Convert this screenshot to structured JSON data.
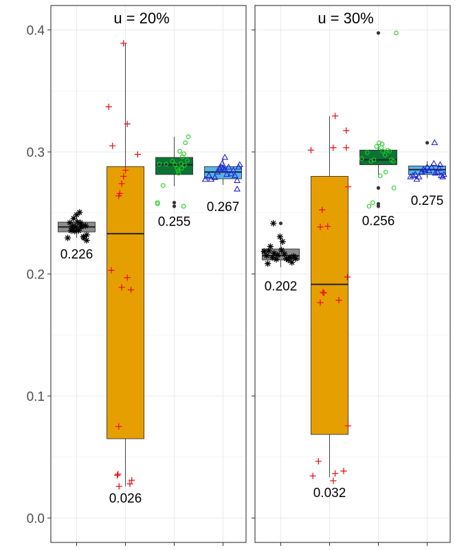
{
  "chart_data": {
    "type": "boxplot",
    "y_axis": {
      "range": [
        -0.02,
        0.42
      ],
      "ticks": [
        0.0,
        0.1,
        0.2,
        0.3,
        0.4
      ],
      "tick_labels": [
        "0.0",
        "0.1",
        "0.2",
        "0.3",
        "0.4"
      ],
      "minor_ticks": [
        0.05,
        0.15,
        0.25,
        0.35
      ],
      "grid": true
    },
    "x_axis": {
      "tick_labels": [
        "",
        "",
        "",
        ""
      ]
    },
    "colors": {
      "series": [
        "#8c8c8c",
        "#e69f00",
        "#0b7335",
        "#56b4e9"
      ],
      "points": [
        "#000000",
        "#e8141e",
        "#22cc22",
        "#1f1fd6"
      ],
      "grid": "#ebebeb",
      "panel_border": "#333333",
      "outlier": "#333333"
    },
    "point_markers": [
      "asterisk",
      "plus",
      "circle",
      "triangle"
    ],
    "panels": [
      {
        "title": "u = 20%",
        "groups": [
          {
            "stats": {
              "q1": 0.2345,
              "median": 0.2385,
              "q3": 0.2425,
              "whisker_low": 0.2295,
              "whisker_high": 0.2485
            },
            "label": "0.226",
            "label_y": 0.2165,
            "outliers": [],
            "points": [
              [
                -0.24,
                0.2295
              ],
              [
                -0.18,
                0.242
              ],
              [
                -0.12,
                0.2375
              ],
              [
                -0.08,
                0.2455
              ],
              [
                -0.05,
                0.235
              ],
              [
                -0.02,
                0.2385
              ],
              [
                0.02,
                0.2425
              ],
              [
                0.05,
                0.2355
              ],
              [
                0.08,
                0.2505
              ],
              [
                0.12,
                0.2385
              ],
              [
                0.15,
                0.2395
              ],
              [
                0.2,
                0.2295
              ],
              [
                0.24,
                0.2395
              ],
              [
                0.27,
                0.2275
              ],
              [
                0.27,
                0.232
              ],
              [
                0.0,
                0.2485
              ],
              [
                -0.15,
                0.2355
              ],
              [
                0.1,
                0.242
              ],
              [
                0.18,
                0.2305
              ],
              [
                -0.1,
                0.2395
              ]
            ]
          },
          {
            "stats": {
              "q1": 0.065,
              "median": 0.233,
              "q3": 0.288,
              "whisker_low": 0.026,
              "whisker_high": 0.389
            },
            "label": "0.026",
            "label_y": 0.0165,
            "outliers": [],
            "points": [
              [
                -0.05,
                0.389
              ],
              [
                -0.45,
                0.337
              ],
              [
                -0.35,
                0.305
              ],
              [
                0.05,
                0.323
              ],
              [
                0.33,
                0.298
              ],
              [
                -0.18,
                0.264
              ],
              [
                -0.1,
                0.274
              ],
              [
                -0.05,
                0.28
              ],
              [
                0.0,
                0.285
              ],
              [
                -0.15,
                0.266
              ],
              [
                -0.38,
                0.203
              ],
              [
                0.05,
                0.197
              ],
              [
                -0.1,
                0.189
              ],
              [
                0.15,
                0.187
              ],
              [
                -0.18,
                0.075
              ],
              [
                -0.2,
                0.036
              ],
              [
                -0.22,
                0.035
              ],
              [
                -0.17,
                0.026
              ],
              [
                0.12,
                0.028
              ],
              [
                0.17,
                0.031
              ]
            ]
          },
          {
            "stats": {
              "q1": 0.2815,
              "median": 0.2895,
              "q3": 0.2955,
              "whisker_low": 0.272,
              "whisker_high": 0.3125
            },
            "label": "0.255",
            "label_y": 0.2435,
            "outliers": [
              0.2585,
              0.2555
            ],
            "points": [
              [
                -0.4,
                0.29
              ],
              [
                -0.22,
                0.29
              ],
              [
                -0.05,
                0.2925
              ],
              [
                0.02,
                0.2895
              ],
              [
                0.08,
                0.2865
              ],
              [
                0.12,
                0.2825
              ],
              [
                0.18,
                0.2905
              ],
              [
                0.22,
                0.296
              ],
              [
                0.26,
                0.2985
              ],
              [
                0.3,
                0.3075
              ],
              [
                0.38,
                0.3125
              ],
              [
                0.28,
                0.289
              ],
              [
                0.15,
                0.3005
              ],
              [
                -0.3,
                0.2725
              ],
              [
                -0.45,
                0.2585
              ],
              [
                -0.45,
                0.2575
              ],
              [
                0.25,
                0.2555
              ],
              [
                0.35,
                0.293
              ],
              [
                0.1,
                0.2845
              ],
              [
                0.2,
                0.2865
              ]
            ]
          },
          {
            "stats": {
              "q1": 0.278,
              "median": 0.2835,
              "q3": 0.288,
              "whisker_low": 0.273,
              "whisker_high": 0.2945
            },
            "label": "0.267",
            "label_y": 0.2555,
            "outliers": [],
            "points": [
              [
                -0.48,
                0.2775
              ],
              [
                -0.38,
                0.2805
              ],
              [
                -0.32,
                0.2775
              ],
              [
                -0.22,
                0.279
              ],
              [
                -0.15,
                0.2835
              ],
              [
                -0.1,
                0.2865
              ],
              [
                -0.05,
                0.2875
              ],
              [
                0.0,
                0.2865
              ],
              [
                0.05,
                0.2855
              ],
              [
                -0.02,
                0.2905
              ],
              [
                0.05,
                0.2955
              ],
              [
                0.15,
                0.2875
              ],
              [
                0.22,
                0.282
              ],
              [
                0.28,
                0.285
              ],
              [
                0.32,
                0.2805
              ],
              [
                0.38,
                0.2765
              ],
              [
                0.42,
                0.2875
              ],
              [
                0.45,
                0.2895
              ],
              [
                0.38,
                0.2695
              ],
              [
                0.1,
                0.2815
              ]
            ]
          }
        ]
      },
      {
        "title": "u = 30%",
        "groups": [
          {
            "stats": {
              "q1": 0.2115,
              "median": 0.215,
              "q3": 0.2205,
              "whisker_low": 0.2055,
              "whisker_high": 0.2315
            },
            "label": "0.202",
            "label_y": 0.1905,
            "outliers": [
              0.2415
            ],
            "points": [
              [
                -0.45,
                0.2185
              ],
              [
                -0.38,
                0.215
              ],
              [
                -0.32,
                0.219
              ],
              [
                -0.28,
                0.2225
              ],
              [
                -0.22,
                0.2135
              ],
              [
                -0.18,
                0.217
              ],
              [
                -0.12,
                0.212
              ],
              [
                -0.08,
                0.2155
              ],
              [
                -0.02,
                0.2305
              ],
              [
                0.05,
                0.2265
              ],
              [
                0.1,
                0.2165
              ],
              [
                0.15,
                0.2125
              ],
              [
                0.2,
                0.2115
              ],
              [
                0.25,
                0.2135
              ],
              [
                0.3,
                0.2095
              ],
              [
                0.35,
                0.2145
              ],
              [
                -0.35,
                0.2085
              ],
              [
                0.02,
                0.2195
              ],
              [
                -0.2,
                0.2415
              ],
              [
                0.4,
                0.2125
              ]
            ]
          },
          {
            "stats": {
              "q1": 0.0685,
              "median": 0.1915,
              "q3": 0.28,
              "whisker_low": 0.0335,
              "whisker_high": 0.3295
            },
            "label": "0.032",
            "label_y": 0.021,
            "outliers": [],
            "points": [
              [
                -0.5,
                0.3015
              ],
              [
                0.15,
                0.3295
              ],
              [
                0.1,
                0.3035
              ],
              [
                0.45,
                0.3175
              ],
              [
                0.45,
                0.3035
              ],
              [
                0.5,
                0.2715
              ],
              [
                -0.2,
                0.2525
              ],
              [
                -0.05,
                0.239
              ],
              [
                -0.25,
                0.2385
              ],
              [
                0.48,
                0.1975
              ],
              [
                -0.18,
                0.185
              ],
              [
                -0.15,
                0.1845
              ],
              [
                0.25,
                0.1785
              ],
              [
                -0.25,
                0.1765
              ],
              [
                0.5,
                0.0755
              ],
              [
                -0.3,
                0.0465
              ],
              [
                -0.45,
                0.0345
              ],
              [
                0.15,
                0.0365
              ],
              [
                0.1,
                0.0305
              ],
              [
                0.38,
                0.0385
              ]
            ]
          },
          {
            "stats": {
              "q1": 0.2895,
              "median": 0.2935,
              "q3": 0.3015,
              "whisker_low": 0.2795,
              "whisker_high": 0.3065
            },
            "label": "0.256",
            "label_y": 0.244,
            "outliers": [
              0.3975,
              0.2705,
              0.2575,
              0.2555
            ],
            "points": [
              [
                0.48,
                0.3975
              ],
              [
                -0.45,
                0.2945
              ],
              [
                -0.3,
                0.2995
              ],
              [
                -0.2,
                0.2925
              ],
              [
                -0.12,
                0.2935
              ],
              [
                -0.05,
                0.3045
              ],
              [
                0.02,
                0.3075
              ],
              [
                0.08,
                0.3035
              ],
              [
                0.12,
                0.3005
              ],
              [
                0.18,
                0.2975
              ],
              [
                0.25,
                0.3015
              ],
              [
                0.3,
                0.3005
              ],
              [
                0.35,
                0.2935
              ],
              [
                0.4,
                0.2925
              ],
              [
                0.42,
                0.2705
              ],
              [
                -0.25,
                0.2555
              ],
              [
                -0.15,
                0.2585
              ],
              [
                0.05,
                0.2805
              ],
              [
                0.1,
                0.3065
              ],
              [
                0.2,
                0.2835
              ]
            ]
          },
          {
            "stats": {
              "q1": 0.2815,
              "median": 0.2855,
              "q3": 0.2885,
              "whisker_low": 0.2785,
              "whisker_high": 0.2925
            },
            "label": "0.275",
            "label_y": 0.2605,
            "outliers": [
              0.3075
            ],
            "points": [
              [
                0.2,
                0.3075
              ],
              [
                -0.45,
                0.2795
              ],
              [
                -0.38,
                0.2805
              ],
              [
                -0.32,
                0.2815
              ],
              [
                -0.28,
                0.2775
              ],
              [
                -0.22,
                0.2795
              ],
              [
                -0.15,
                0.2835
              ],
              [
                -0.1,
                0.2855
              ],
              [
                -0.05,
                0.2845
              ],
              [
                0.0,
                0.2875
              ],
              [
                0.05,
                0.2845
              ],
              [
                0.12,
                0.2875
              ],
              [
                0.18,
                0.2905
              ],
              [
                0.22,
                0.2825
              ],
              [
                0.28,
                0.2835
              ],
              [
                0.32,
                0.2865
              ],
              [
                0.38,
                0.2805
              ],
              [
                0.42,
                0.2795
              ],
              [
                0.45,
                0.2815
              ],
              [
                0.35,
                0.2895
              ]
            ]
          }
        ]
      }
    ]
  }
}
